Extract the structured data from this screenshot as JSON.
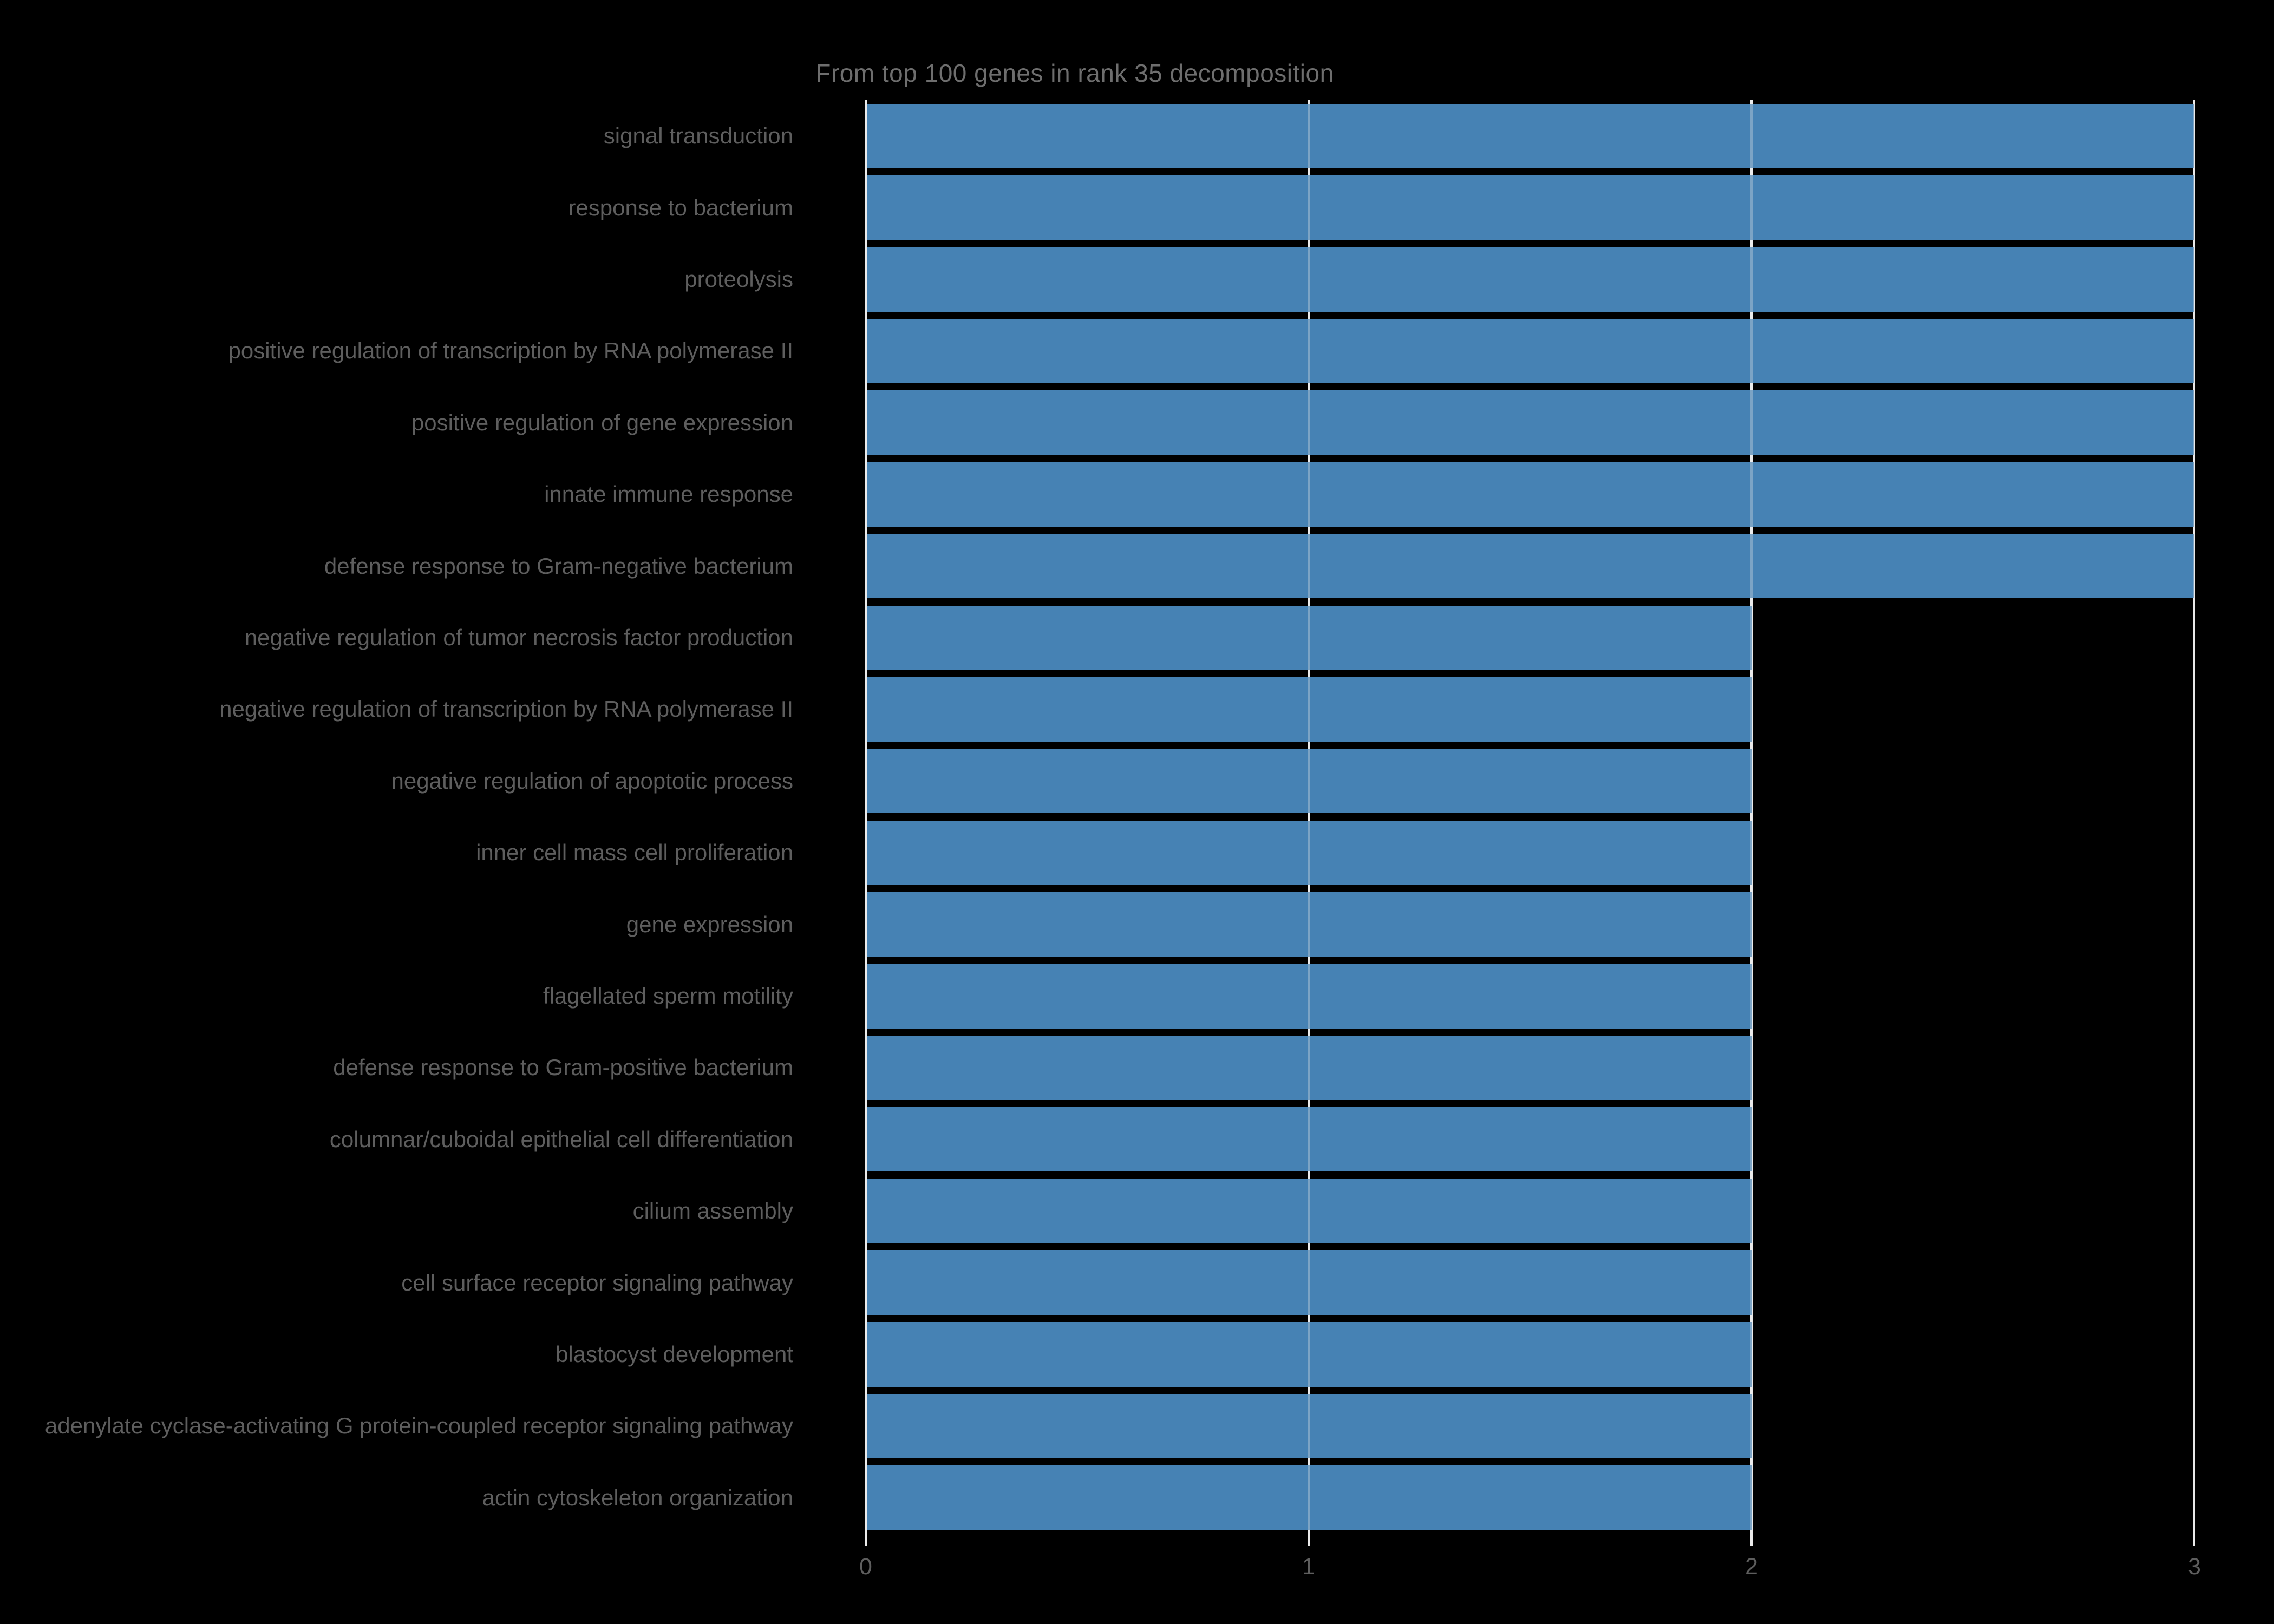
{
  "chart_data": {
    "type": "bar",
    "orientation": "horizontal",
    "title": "From top 100 genes in rank 35 decomposition",
    "categories": [
      "signal transduction",
      "response to bacterium",
      "proteolysis",
      "positive regulation of transcription by RNA polymerase II",
      "positive regulation of gene expression",
      "innate immune response",
      "defense response to Gram-negative bacterium",
      "negative regulation of tumor necrosis factor production",
      "negative regulation of transcription by RNA polymerase II",
      "negative regulation of apoptotic process",
      "inner cell mass cell proliferation",
      "gene expression",
      "flagellated sperm motility",
      "defense response to Gram-positive bacterium",
      "columnar/cuboidal epithelial cell differentiation",
      "cilium assembly",
      "cell surface receptor signaling pathway",
      "blastocyst development",
      "adenylate cyclase-activating G protein-coupled receptor signaling pathway",
      "actin cytoskeleton organization"
    ],
    "values": [
      3,
      3,
      3,
      3,
      3,
      3,
      3,
      2,
      2,
      2,
      2,
      2,
      2,
      2,
      2,
      2,
      2,
      2,
      2,
      2
    ],
    "xlabel": "",
    "ylabel": "",
    "xticks": [
      0,
      1,
      2,
      3
    ],
    "xlim": [
      0,
      3.08
    ],
    "grid": "vertical",
    "legend": null,
    "colors": {
      "background": "#000000",
      "bar": "#4682b4",
      "gridline": "#ebebeb",
      "title_text": "#6e6e6e",
      "tick_text": "#5e5e5e"
    }
  }
}
